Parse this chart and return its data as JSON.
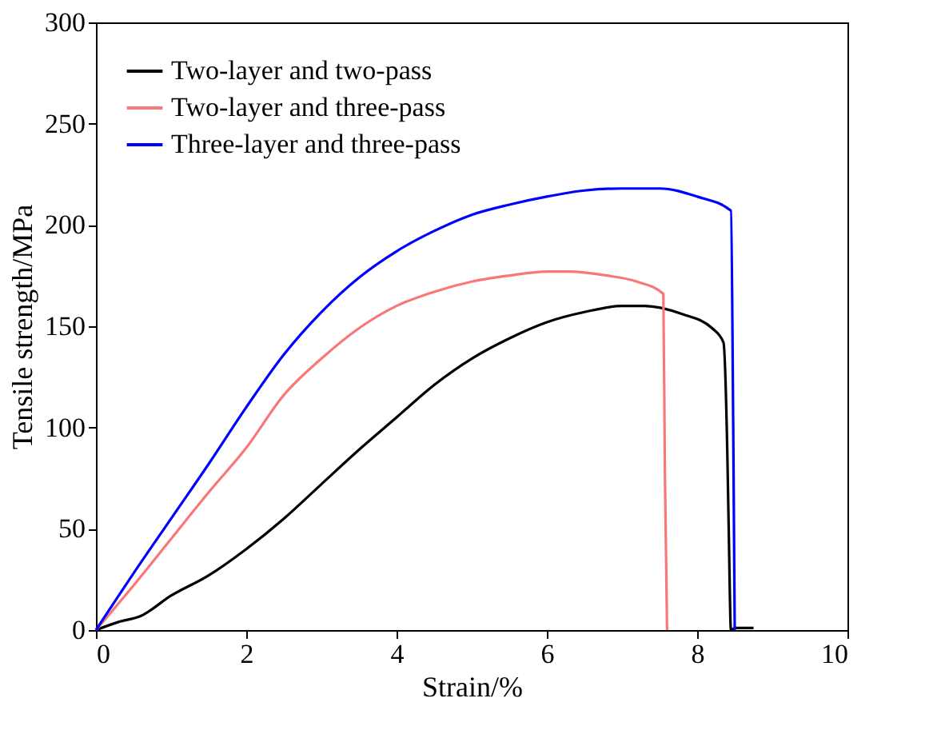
{
  "chart_data": {
    "type": "line",
    "xlabel": "Strain/%",
    "ylabel": "Tensile strength/MPa",
    "xlim": [
      0,
      10
    ],
    "ylim": [
      0,
      300
    ],
    "xticks": [
      0,
      2,
      4,
      6,
      8,
      10
    ],
    "yticks": [
      0,
      50,
      100,
      150,
      200,
      250,
      300
    ],
    "grid": false,
    "legend": "top left",
    "line_style": "solid",
    "marker": "none",
    "series": [
      {
        "name": "Two-layer and two-pass",
        "color": "#000000",
        "x": [
          0,
          0.3,
          0.6,
          1,
          1.5,
          2,
          2.5,
          3,
          3.5,
          4,
          4.5,
          5,
          5.5,
          6,
          6.5,
          7,
          7.3,
          7.8,
          8.2,
          8.35,
          8.4,
          8.42,
          8.45,
          8.5,
          8.75
        ],
        "values": [
          0,
          4,
          7,
          17,
          27,
          40,
          55,
          72,
          89,
          105,
          121,
          134,
          144,
          152,
          157,
          160,
          160,
          156,
          149,
          142,
          90,
          50,
          0,
          1,
          1
        ]
      },
      {
        "name": "Two-layer and three-pass",
        "color": "#f87878",
        "x": [
          0,
          0.5,
          1,
          1.5,
          2,
          2.5,
          3,
          3.5,
          4,
          4.5,
          5,
          5.5,
          6,
          6.3,
          6.8,
          7.2,
          7.55,
          7.57,
          7.6
        ],
        "values": [
          0,
          22,
          45,
          68,
          90,
          116,
          134,
          149,
          160,
          167,
          172,
          175,
          177,
          177,
          175,
          172,
          166,
          80,
          0
        ]
      },
      {
        "name": "Three-layer and three-pass",
        "color": "#0000ff",
        "x": [
          0,
          0.5,
          1,
          1.5,
          2,
          2.5,
          3,
          3.5,
          4,
          4.5,
          5,
          5.5,
          6,
          6.5,
          7,
          7.5,
          8,
          8.45,
          8.48,
          8.5
        ],
        "values": [
          0,
          28,
          55,
          82,
          110,
          136,
          157,
          174,
          187,
          197,
          205,
          210,
          214,
          217,
          218,
          218,
          214,
          207,
          100,
          0
        ]
      }
    ]
  }
}
